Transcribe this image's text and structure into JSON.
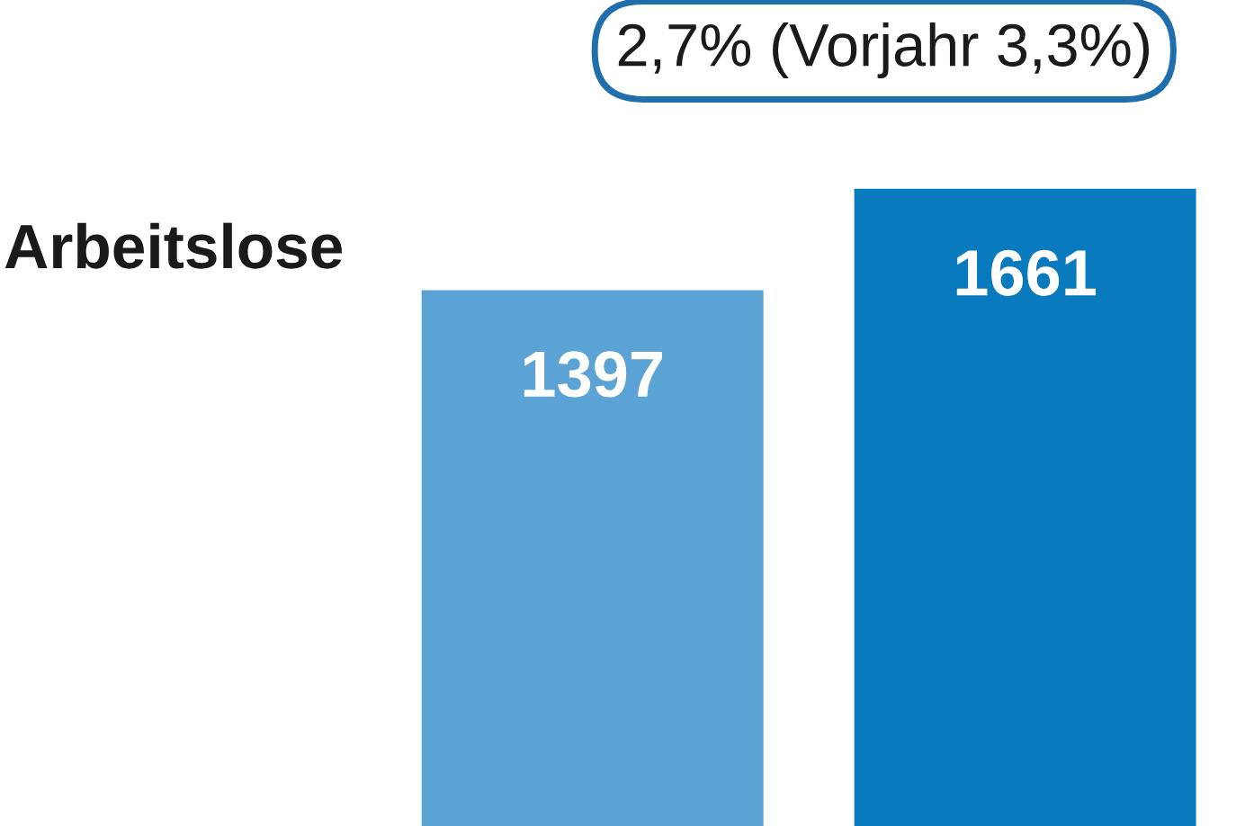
{
  "chart_data": {
    "type": "bar",
    "title": "Arbeitslose",
    "annotations": [
      "2,7% (Vorjahr 3,3%)"
    ],
    "categories": [
      null,
      null
    ],
    "values": [
      1397,
      1661
    ],
    "colors": [
      "#5ba3d4",
      "#0a7abf"
    ],
    "data_labels": true,
    "tick_labels": false
  }
}
